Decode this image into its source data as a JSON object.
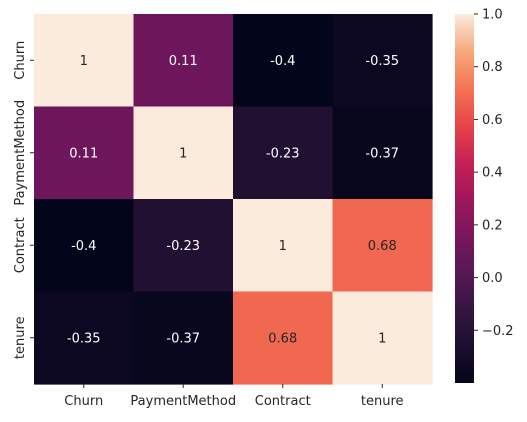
{
  "chart_data": {
    "type": "heatmap",
    "title": "",
    "xlabel": "",
    "ylabel": "",
    "x_categories": [
      "Churn",
      "PaymentMethod",
      "Contract",
      "tenure"
    ],
    "y_categories": [
      "Churn",
      "PaymentMethod",
      "Contract",
      "tenure"
    ],
    "values": [
      [
        1,
        0.11,
        -0.4,
        -0.35
      ],
      [
        0.11,
        1,
        -0.23,
        -0.37
      ],
      [
        -0.4,
        -0.23,
        1,
        0.68
      ],
      [
        -0.35,
        -0.37,
        0.68,
        1
      ]
    ],
    "annotations": true,
    "colormap": "rocket",
    "color_range": [
      -0.4,
      1.0
    ],
    "colorbar": {
      "ticks": [
        -0.2,
        0.0,
        0.2,
        0.4,
        0.6,
        0.8,
        1.0
      ],
      "tick_labels": [
        "−0.2",
        "0.0",
        "0.2",
        "0.4",
        "0.6",
        "0.8",
        "1.0"
      ],
      "placement": "right"
    },
    "annotation_colors": {
      "dark_cell_text": "#ffffff",
      "light_cell_text": "#262626"
    },
    "tick_color": "#262626"
  }
}
